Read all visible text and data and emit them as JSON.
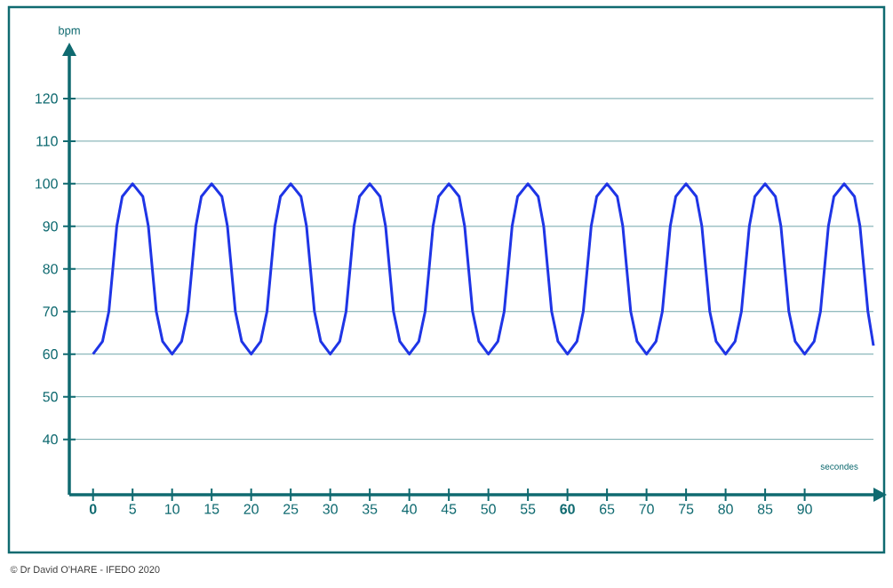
{
  "chart_data": {
    "type": "line",
    "xlabel": "secondes",
    "ylabel": "bpm",
    "annotations": [
      "© Dr David O'HARE - IFEDO 2020"
    ],
    "x": [
      0,
      1.2,
      2,
      2.5,
      3,
      3.7,
      5,
      6.3,
      7,
      7.5,
      8,
      8.8,
      10,
      11.2,
      12,
      12.5,
      13,
      13.7,
      15,
      16.3,
      17,
      17.5,
      18,
      18.8,
      20,
      21.2,
      22,
      22.5,
      23,
      23.7,
      25,
      26.3,
      27,
      27.5,
      28,
      28.8,
      30,
      31.2,
      32,
      32.5,
      33,
      33.7,
      35,
      36.3,
      37,
      37.5,
      38,
      38.8,
      40,
      41.2,
      42,
      42.5,
      43,
      43.7,
      45,
      46.3,
      47,
      47.5,
      48,
      48.8,
      50,
      51.2,
      52,
      52.5,
      53,
      53.7,
      55,
      56.3,
      57,
      57.5,
      58,
      58.8,
      60,
      61.2,
      62,
      62.5,
      63,
      63.7,
      65,
      66.3,
      67,
      67.5,
      68,
      68.8,
      70,
      71.2,
      72,
      72.5,
      73,
      73.7,
      75,
      76.3,
      77,
      77.5,
      78,
      78.8,
      80,
      81.2,
      82,
      82.5,
      83,
      83.7,
      85,
      86.3,
      87,
      87.5,
      88,
      88.8,
      90,
      91.2,
      92,
      92.5,
      93,
      93.7,
      95,
      96.3,
      97,
      97.5,
      98,
      98.7
    ],
    "series": [
      {
        "color": "#1f35e6",
        "values": [
          60,
          63,
          70,
          80,
          90,
          97,
          100,
          97,
          90,
          80,
          70,
          63,
          60,
          63,
          70,
          80,
          90,
          97,
          100,
          97,
          90,
          80,
          70,
          63,
          60,
          63,
          70,
          80,
          90,
          97,
          100,
          97,
          90,
          80,
          70,
          63,
          60,
          63,
          70,
          80,
          90,
          97,
          100,
          97,
          90,
          80,
          70,
          63,
          60,
          63,
          70,
          80,
          90,
          97,
          100,
          97,
          90,
          80,
          70,
          63,
          60,
          63,
          70,
          80,
          90,
          97,
          100,
          97,
          90,
          80,
          70,
          63,
          60,
          63,
          70,
          80,
          90,
          97,
          100,
          97,
          90,
          80,
          70,
          63,
          60,
          63,
          70,
          80,
          90,
          97,
          100,
          97,
          90,
          80,
          70,
          63,
          60,
          63,
          70,
          80,
          90,
          97,
          100,
          97,
          90,
          80,
          70,
          63,
          60,
          63,
          70,
          80,
          90,
          97,
          100,
          97,
          90,
          80,
          70,
          62
        ]
      }
    ],
    "xlim": [
      -3,
      98.7
    ],
    "ylim": [
      27,
      130
    ],
    "xticks": [
      {
        "value": 0,
        "label": "**0**"
      },
      5,
      10,
      15,
      20,
      25,
      30,
      35,
      40,
      45,
      50,
      55,
      {
        "value": 60,
        "label": "**60**"
      },
      65,
      70,
      75,
      80,
      85,
      90
    ],
    "yticks": [
      40,
      50,
      60,
      70,
      80,
      90,
      100,
      110,
      120
    ],
    "grid": "y"
  }
}
